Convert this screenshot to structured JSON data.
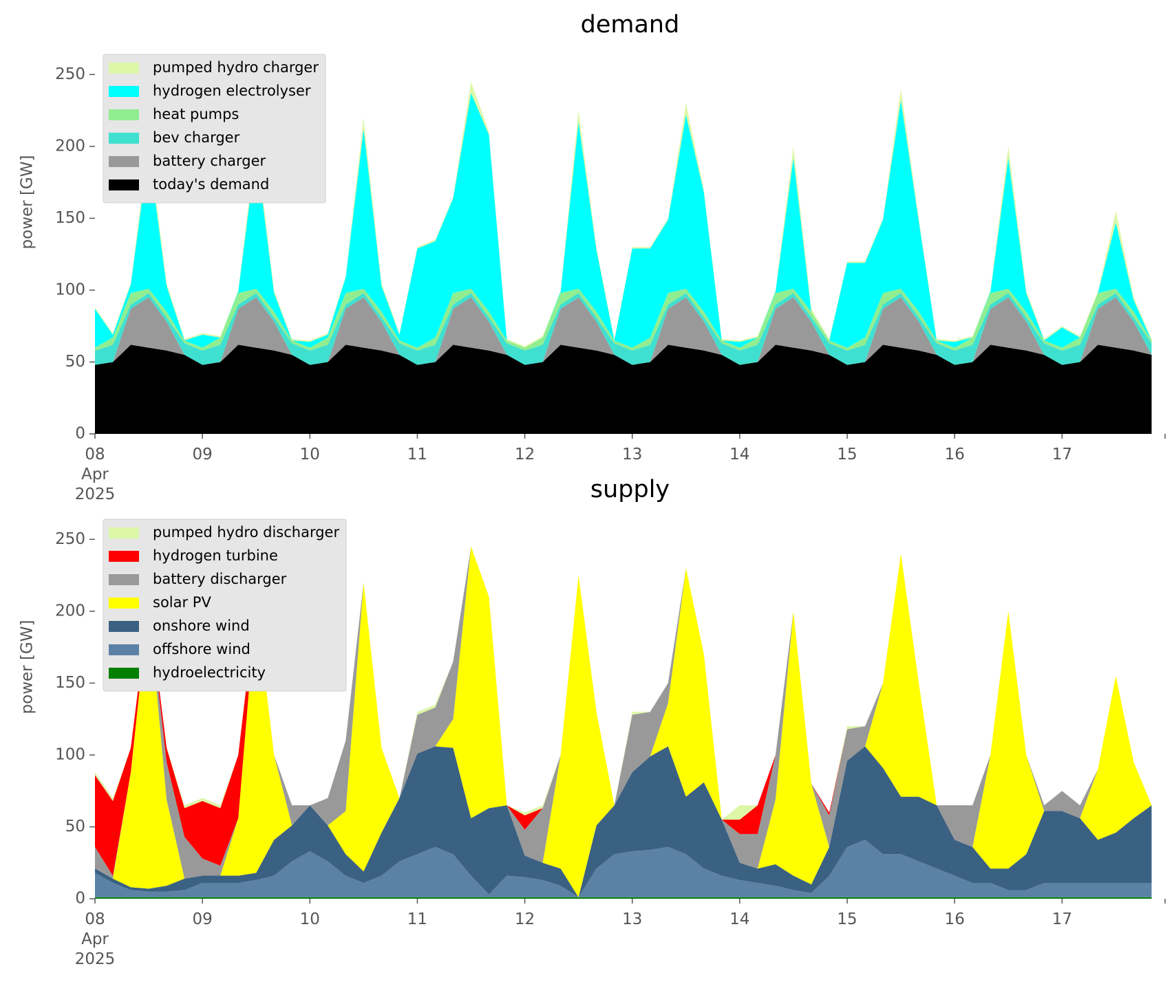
{
  "chart_data": [
    {
      "type": "area",
      "title": "demand",
      "y_label": "power [GW]",
      "legend": "upper left",
      "x": [
        0,
        4,
        8,
        12,
        16,
        20,
        24,
        28,
        32,
        36,
        40,
        44,
        48,
        52,
        56,
        60,
        64,
        68,
        72,
        76,
        80,
        84,
        88,
        92,
        96,
        100,
        104,
        108,
        112,
        116,
        120,
        124,
        128,
        132,
        136,
        140,
        144,
        148,
        152,
        156,
        160,
        164,
        168,
        172,
        176,
        180,
        184,
        188,
        192,
        196,
        200,
        204,
        208,
        212,
        216,
        220,
        224,
        228,
        232,
        236
      ],
      "xlim": [
        0,
        239
      ],
      "xticks": [
        {
          "value": 0,
          "label": "08\nApr\n2025"
        },
        {
          "value": 24,
          "label": "09"
        },
        {
          "value": 48,
          "label": "10"
        },
        {
          "value": 72,
          "label": "11"
        },
        {
          "value": 96,
          "label": "12"
        },
        {
          "value": 120,
          "label": "13"
        },
        {
          "value": 144,
          "label": "14"
        },
        {
          "value": 168,
          "label": "15"
        },
        {
          "value": 192,
          "label": "16"
        },
        {
          "value": 216,
          "label": "17"
        }
      ],
      "ylim": [
        0,
        265
      ],
      "yticks": [
        0,
        50,
        100,
        150,
        200,
        250
      ],
      "series": [
        {
          "name": "pumped hydro charger",
          "color": "#ddf7a8",
          "values": [
            1,
            1,
            1,
            8,
            2,
            1,
            1,
            1,
            1,
            8,
            2,
            1,
            1,
            1,
            1,
            8,
            2,
            1,
            1,
            1,
            1,
            8,
            2,
            1,
            1,
            1,
            1,
            8,
            2,
            1,
            1,
            1,
            1,
            8,
            2,
            1,
            1,
            1,
            1,
            8,
            2,
            1,
            1,
            1,
            1,
            8,
            2,
            1,
            1,
            1,
            1,
            8,
            2,
            1,
            1,
            1,
            1,
            8,
            2,
            1
          ]
        },
        {
          "name": "hydrogen electrolyser",
          "color": "#00ffff",
          "values": [
            27,
            2,
            6,
            96,
            18,
            0,
            9,
            0,
            1,
            96,
            13,
            0,
            4,
            2,
            11,
            111,
            18,
            4,
            69,
            67,
            66,
            136,
            123,
            0,
            0,
            0,
            1,
            116,
            43,
            0,
            69,
            62,
            51,
            121,
            83,
            0,
            4,
            0,
            1,
            91,
            0,
            0,
            59,
            52,
            51,
            131,
            63,
            0,
            4,
            0,
            1,
            91,
            13,
            0,
            14,
            0,
            0,
            46,
            8,
            0
          ]
        },
        {
          "name": "heat pumps",
          "color": "#90ee90",
          "values": [
            2,
            5,
            8,
            3,
            4,
            2,
            2,
            5,
            8,
            3,
            4,
            2,
            2,
            5,
            8,
            3,
            4,
            2,
            2,
            5,
            8,
            3,
            4,
            2,
            2,
            5,
            8,
            3,
            4,
            2,
            2,
            5,
            8,
            3,
            4,
            2,
            2,
            5,
            8,
            3,
            4,
            2,
            2,
            5,
            8,
            3,
            4,
            2,
            2,
            5,
            8,
            3,
            4,
            2,
            2,
            5,
            8,
            3,
            4,
            2
          ]
        },
        {
          "name": "bev charger",
          "color": "#40e0d0",
          "values": [
            10,
            12,
            3,
            3,
            3,
            8,
            10,
            12,
            3,
            3,
            3,
            8,
            10,
            12,
            3,
            3,
            3,
            8,
            10,
            12,
            3,
            3,
            3,
            8,
            10,
            12,
            3,
            3,
            3,
            8,
            10,
            12,
            3,
            3,
            3,
            8,
            10,
            12,
            3,
            3,
            3,
            8,
            10,
            12,
            3,
            3,
            3,
            8,
            10,
            12,
            3,
            3,
            3,
            8,
            10,
            12,
            3,
            3,
            3,
            8
          ]
        },
        {
          "name": "battery charger",
          "color": "#999999",
          "values": [
            0,
            0,
            25,
            35,
            20,
            0,
            0,
            0,
            25,
            35,
            20,
            0,
            0,
            0,
            25,
            35,
            20,
            0,
            0,
            0,
            25,
            35,
            20,
            0,
            0,
            0,
            25,
            35,
            20,
            0,
            0,
            0,
            25,
            35,
            20,
            0,
            0,
            0,
            25,
            35,
            20,
            0,
            0,
            0,
            25,
            35,
            20,
            0,
            0,
            0,
            25,
            35,
            20,
            0,
            0,
            0,
            25,
            35,
            20,
            0
          ]
        },
        {
          "name": "today's demand",
          "color": "#000000",
          "values": [
            48,
            50,
            62,
            60,
            58,
            55,
            48,
            50,
            62,
            60,
            58,
            55,
            48,
            50,
            62,
            60,
            58,
            55,
            48,
            50,
            62,
            60,
            58,
            55,
            48,
            50,
            62,
            60,
            58,
            55,
            48,
            50,
            62,
            60,
            58,
            55,
            48,
            50,
            62,
            60,
            58,
            55,
            48,
            50,
            62,
            60,
            58,
            55,
            48,
            50,
            62,
            60,
            58,
            55,
            48,
            50,
            62,
            60,
            58,
            55
          ]
        }
      ]
    },
    {
      "type": "area",
      "title": "supply",
      "y_label": "power [GW]",
      "legend": "upper left",
      "x": [
        0,
        4,
        8,
        12,
        16,
        20,
        24,
        28,
        32,
        36,
        40,
        44,
        48,
        52,
        56,
        60,
        64,
        68,
        72,
        76,
        80,
        84,
        88,
        92,
        96,
        100,
        104,
        108,
        112,
        116,
        120,
        124,
        128,
        132,
        136,
        140,
        144,
        148,
        152,
        156,
        160,
        164,
        168,
        172,
        176,
        180,
        184,
        188,
        192,
        196,
        200,
        204,
        208,
        212,
        216,
        220,
        224,
        228,
        232,
        236
      ],
      "xlim": [
        0,
        239
      ],
      "xticks": [
        {
          "value": 0,
          "label": "08\nApr\n2025"
        },
        {
          "value": 24,
          "label": "09"
        },
        {
          "value": 48,
          "label": "10"
        },
        {
          "value": 72,
          "label": "11"
        },
        {
          "value": 96,
          "label": "12"
        },
        {
          "value": 120,
          "label": "13"
        },
        {
          "value": 144,
          "label": "14"
        },
        {
          "value": 168,
          "label": "15"
        },
        {
          "value": 192,
          "label": "16"
        },
        {
          "value": 216,
          "label": "17"
        }
      ],
      "ylim": [
        0,
        265
      ],
      "yticks": [
        0,
        50,
        100,
        150,
        200,
        250
      ],
      "series": [
        {
          "name": "pumped hydro discharger",
          "color": "#ddf7a8",
          "values": [
            2,
            2,
            0,
            0,
            0,
            2,
            2,
            2,
            0,
            0,
            0,
            0,
            0,
            0,
            0,
            0,
            0,
            0,
            2,
            2,
            0,
            0,
            0,
            0,
            2,
            2,
            0,
            0,
            0,
            0,
            2,
            0,
            0,
            0,
            0,
            0,
            10,
            0,
            0,
            0,
            0,
            0,
            2,
            0,
            0,
            0,
            0,
            0,
            0,
            0,
            0,
            0,
            0,
            0,
            0,
            0,
            0,
            0,
            0,
            0
          ]
        },
        {
          "name": "hydrogen turbine",
          "color": "#ff0000",
          "values": [
            50,
            52,
            17,
            0,
            10,
            20,
            40,
            40,
            44,
            0,
            0,
            0,
            0,
            0,
            0,
            0,
            0,
            0,
            0,
            0,
            0,
            0,
            0,
            0,
            10,
            0,
            0,
            0,
            0,
            0,
            0,
            0,
            0,
            0,
            0,
            0,
            10,
            20,
            0,
            0,
            0,
            2,
            0,
            0,
            0,
            0,
            0,
            0,
            0,
            0,
            0,
            0,
            0,
            0,
            0,
            0,
            0,
            0,
            0,
            0
          ]
        },
        {
          "name": "battery discharger",
          "color": "#999999",
          "values": [
            15,
            2,
            0,
            0,
            26,
            29,
            12,
            7,
            0,
            0,
            0,
            14,
            0,
            19,
            49,
            0,
            0,
            0,
            27,
            27,
            40,
            0,
            0,
            0,
            18,
            38,
            0,
            0,
            0,
            0,
            40,
            31,
            14,
            0,
            0,
            0,
            20,
            24,
            31,
            0,
            0,
            22,
            22,
            14,
            0,
            0,
            0,
            0,
            24,
            29,
            0,
            0,
            0,
            4,
            14,
            9,
            0,
            0,
            0,
            0
          ]
        },
        {
          "name": "solar PV",
          "color": "#ffff00",
          "values": [
            0,
            0,
            80,
            198,
            60,
            0,
            0,
            0,
            40,
            187,
            59,
            0,
            0,
            0,
            30,
            201,
            59,
            0,
            0,
            0,
            20,
            189,
            147,
            0,
            0,
            0,
            79,
            224,
            79,
            0,
            0,
            0,
            30,
            159,
            89,
            0,
            0,
            0,
            45,
            184,
            70,
            0,
            0,
            0,
            59,
            169,
            79,
            0,
            0,
            0,
            79,
            179,
            69,
            0,
            0,
            0,
            49,
            109,
            39,
            0
          ]
        },
        {
          "name": "onshore wind",
          "color": "#3b6182",
          "values": [
            3,
            3,
            2,
            2,
            4,
            8,
            5,
            5,
            5,
            5,
            25,
            25,
            32,
            25,
            15,
            8,
            30,
            44,
            70,
            70,
            74,
            40,
            60,
            49,
            15,
            12,
            12,
            0,
            30,
            34,
            55,
            65,
            70,
            40,
            60,
            39,
            12,
            10,
            15,
            10,
            6,
            20,
            60,
            65,
            60,
            40,
            45,
            44,
            25,
            25,
            10,
            15,
            25,
            50,
            50,
            45,
            30,
            35,
            45,
            54
          ]
        },
        {
          "name": "offshore wind",
          "color": "#5b82a5",
          "values": [
            17,
            10,
            5,
            4,
            4,
            5,
            10,
            10,
            10,
            12,
            15,
            25,
            32,
            25,
            15,
            10,
            15,
            25,
            30,
            35,
            30,
            15,
            2,
            15,
            14,
            12,
            8,
            0,
            20,
            30,
            32,
            33,
            35,
            30,
            20,
            15,
            12,
            10,
            8,
            5,
            3,
            15,
            35,
            40,
            30,
            30,
            25,
            20,
            15,
            10,
            10,
            5,
            5,
            10,
            10,
            10,
            10,
            10,
            10,
            10
          ]
        },
        {
          "name": "hydroelectricity",
          "color": "#008000",
          "values": [
            1,
            1,
            1,
            1,
            1,
            1,
            1,
            1,
            1,
            1,
            1,
            1,
            1,
            1,
            1,
            1,
            1,
            1,
            1,
            1,
            1,
            1,
            1,
            1,
            1,
            1,
            1,
            1,
            1,
            1,
            1,
            1,
            1,
            1,
            1,
            1,
            1,
            1,
            1,
            1,
            1,
            1,
            1,
            1,
            1,
            1,
            1,
            1,
            1,
            1,
            1,
            1,
            1,
            1,
            1,
            1,
            1,
            1,
            1,
            1
          ]
        }
      ]
    }
  ]
}
